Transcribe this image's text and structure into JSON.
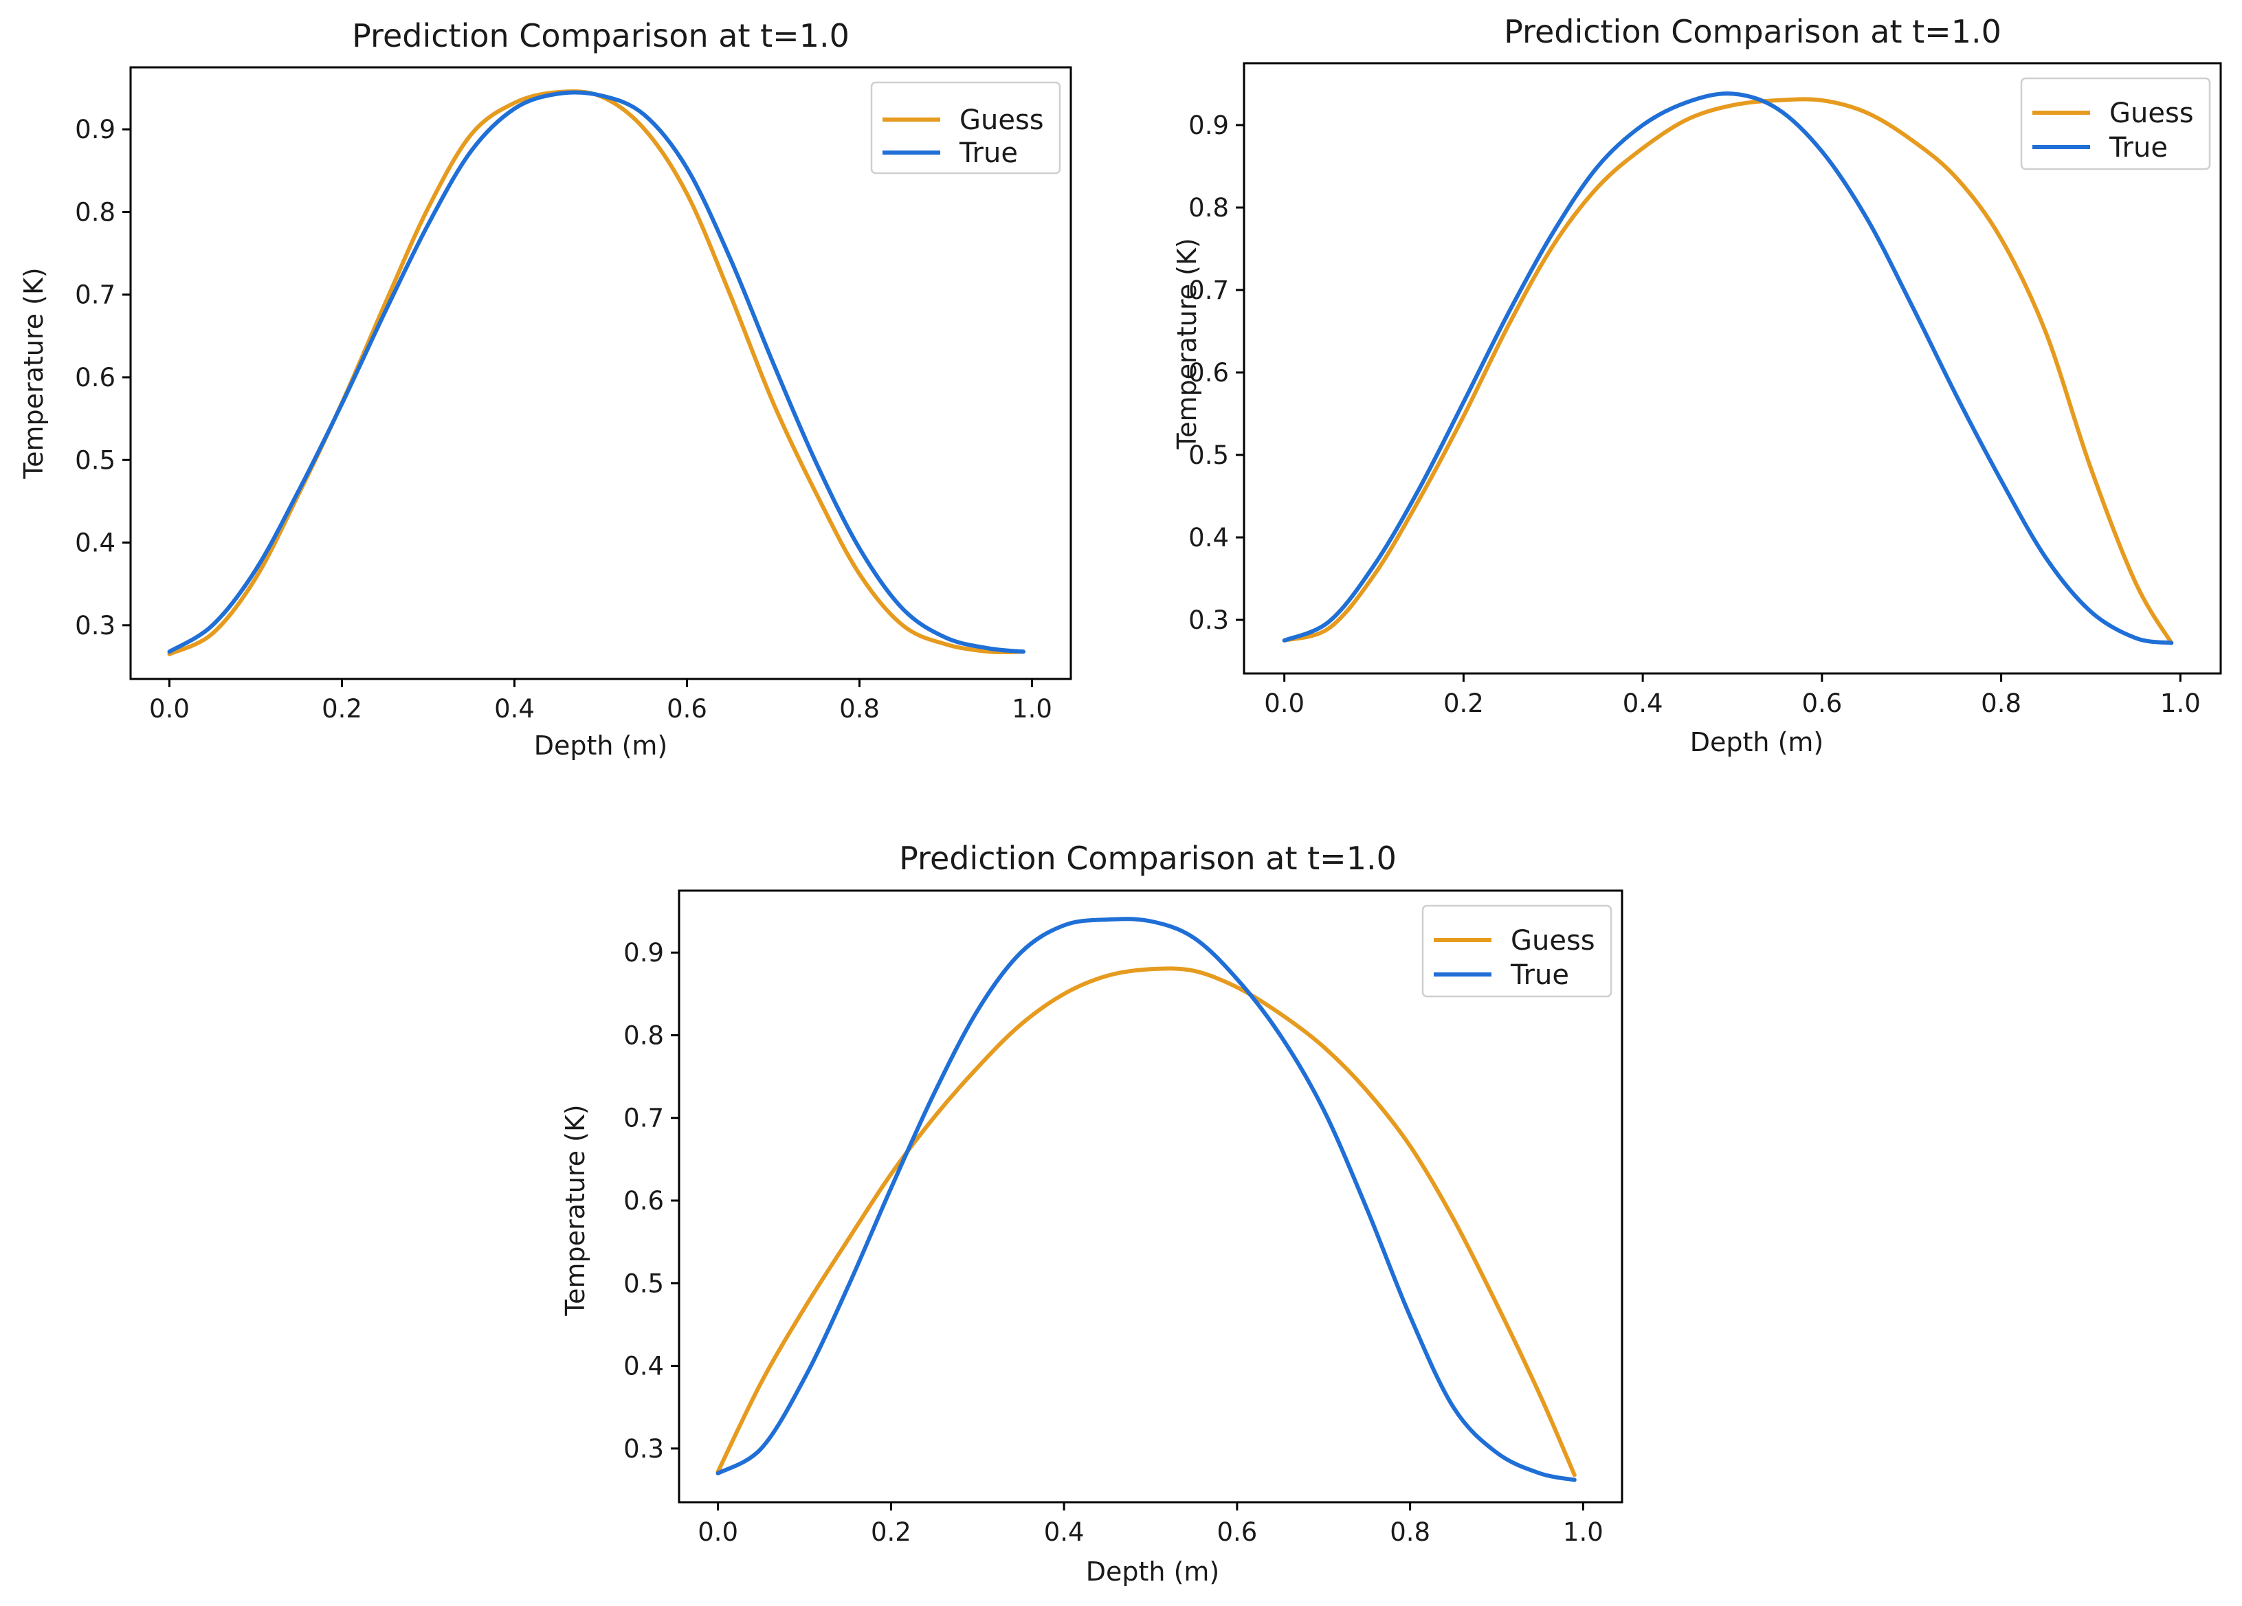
{
  "chart_data": [
    {
      "type": "line",
      "title": "Prediction Comparison at t=1.0",
      "xlabel": "Depth (m)",
      "ylabel": "Temperature (K)",
      "xlim": [
        -0.045,
        1.045
      ],
      "ylim": [
        0.235,
        0.975
      ],
      "xticks": [
        0.0,
        0.2,
        0.4,
        0.6,
        0.8,
        1.0
      ],
      "xtick_labels": [
        "0.0",
        "0.2",
        "0.4",
        "0.6",
        "0.8",
        "1.0"
      ],
      "yticks": [
        0.3,
        0.4,
        0.5,
        0.6,
        0.7,
        0.8,
        0.9
      ],
      "ytick_labels": [
        "0.3",
        "0.4",
        "0.5",
        "0.6",
        "0.7",
        "0.8",
        "0.9"
      ],
      "grid": false,
      "legend_position": "top-right",
      "x": [
        0.0,
        0.05,
        0.1,
        0.15,
        0.2,
        0.25,
        0.3,
        0.35,
        0.4,
        0.45,
        0.5,
        0.55,
        0.6,
        0.65,
        0.7,
        0.75,
        0.8,
        0.85,
        0.9,
        0.95,
        0.99
      ],
      "series": [
        {
          "name": "Guess",
          "color": "#e69b1f",
          "values": [
            0.265,
            0.29,
            0.357,
            0.459,
            0.569,
            0.689,
            0.805,
            0.894,
            0.932,
            0.945,
            0.94,
            0.901,
            0.822,
            0.7,
            0.569,
            0.459,
            0.362,
            0.3,
            0.277,
            0.268,
            0.268
          ]
        },
        {
          "name": "True",
          "color": "#1f6fd6",
          "values": [
            0.268,
            0.3,
            0.367,
            0.463,
            0.568,
            0.679,
            0.785,
            0.874,
            0.925,
            0.943,
            0.941,
            0.918,
            0.853,
            0.744,
            0.617,
            0.496,
            0.393,
            0.32,
            0.285,
            0.272,
            0.268
          ]
        }
      ]
    },
    {
      "type": "line",
      "title": "Prediction Comparison at t=1.0",
      "xlabel": "Depth (m)",
      "ylabel": "Temperature (K)",
      "xlim": [
        -0.045,
        1.045
      ],
      "ylim": [
        0.235,
        0.975
      ],
      "xticks": [
        0.0,
        0.2,
        0.4,
        0.6,
        0.8,
        1.0
      ],
      "xtick_labels": [
        "0.0",
        "0.2",
        "0.4",
        "0.6",
        "0.8",
        "1.0"
      ],
      "yticks": [
        0.3,
        0.4,
        0.5,
        0.6,
        0.7,
        0.8,
        0.9
      ],
      "ytick_labels": [
        "0.3",
        "0.4",
        "0.5",
        "0.6",
        "0.7",
        "0.8",
        "0.9"
      ],
      "grid": false,
      "legend_position": "top-right",
      "x": [
        0.0,
        0.05,
        0.1,
        0.15,
        0.2,
        0.25,
        0.3,
        0.35,
        0.4,
        0.45,
        0.5,
        0.55,
        0.6,
        0.65,
        0.7,
        0.75,
        0.8,
        0.85,
        0.9,
        0.95,
        0.99
      ],
      "series": [
        {
          "name": "Guess",
          "color": "#e69b1f",
          "values": [
            0.275,
            0.29,
            0.354,
            0.445,
            0.547,
            0.657,
            0.754,
            0.825,
            0.872,
            0.907,
            0.924,
            0.93,
            0.93,
            0.915,
            0.882,
            0.836,
            0.762,
            0.648,
            0.484,
            0.345,
            0.272
          ]
        },
        {
          "name": "True",
          "color": "#1f6fd6",
          "values": [
            0.275,
            0.298,
            0.366,
            0.458,
            0.564,
            0.672,
            0.77,
            0.85,
            0.9,
            0.928,
            0.938,
            0.92,
            0.868,
            0.787,
            0.682,
            0.572,
            0.469,
            0.375,
            0.31,
            0.278,
            0.272
          ]
        }
      ]
    },
    {
      "type": "line",
      "title": "Prediction Comparison at t=1.0",
      "xlabel": "Depth (m)",
      "ylabel": "Temperature (K)",
      "xlim": [
        -0.045,
        1.045
      ],
      "ylim": [
        0.235,
        0.975
      ],
      "xticks": [
        0.0,
        0.2,
        0.4,
        0.6,
        0.8,
        1.0
      ],
      "xtick_labels": [
        "0.0",
        "0.2",
        "0.4",
        "0.6",
        "0.8",
        "1.0"
      ],
      "yticks": [
        0.3,
        0.4,
        0.5,
        0.6,
        0.7,
        0.8,
        0.9
      ],
      "ytick_labels": [
        "0.3",
        "0.4",
        "0.5",
        "0.6",
        "0.7",
        "0.8",
        "0.9"
      ],
      "grid": false,
      "legend_position": "top-right",
      "x": [
        0.0,
        0.05,
        0.1,
        0.15,
        0.2,
        0.25,
        0.3,
        0.35,
        0.4,
        0.45,
        0.5,
        0.55,
        0.6,
        0.65,
        0.7,
        0.75,
        0.8,
        0.85,
        0.9,
        0.95,
        0.99
      ],
      "series": [
        {
          "name": "Guess",
          "color": "#e69b1f",
          "values": [
            0.272,
            0.38,
            0.47,
            0.552,
            0.632,
            0.701,
            0.761,
            0.813,
            0.85,
            0.872,
            0.88,
            0.878,
            0.858,
            0.826,
            0.786,
            0.733,
            0.666,
            0.578,
            0.475,
            0.365,
            0.268
          ]
        },
        {
          "name": "True",
          "color": "#1f6fd6",
          "values": [
            0.27,
            0.3,
            0.385,
            0.495,
            0.615,
            0.73,
            0.83,
            0.9,
            0.933,
            0.94,
            0.938,
            0.918,
            0.868,
            0.8,
            0.71,
            0.59,
            0.46,
            0.35,
            0.295,
            0.27,
            0.262
          ]
        }
      ]
    }
  ]
}
